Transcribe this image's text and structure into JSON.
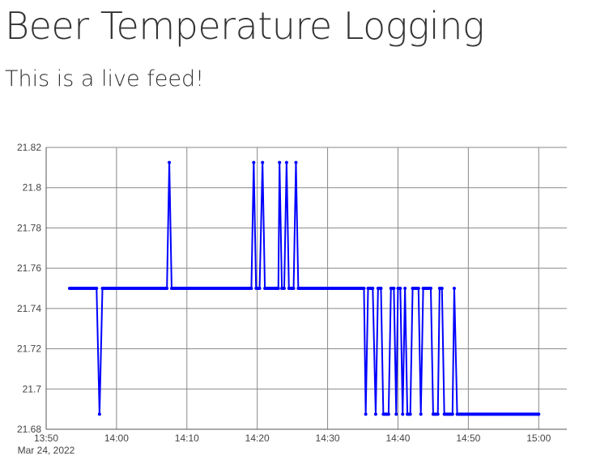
{
  "page": {
    "title": "Beer Temperature Logging",
    "subtitle": "This is a live feed!"
  },
  "chart_data": {
    "type": "line",
    "title": "",
    "xlabel": "",
    "ylabel": "",
    "x_date_label": "Mar 24, 2022",
    "x_tick_labels": [
      "13:50",
      "14:00",
      "14:10",
      "14:20",
      "14:30",
      "14:40",
      "14:50",
      "15:00"
    ],
    "y_tick_labels": [
      "21.68",
      "21.7",
      "21.72",
      "21.74",
      "21.76",
      "21.78",
      "21.8",
      "21.82"
    ],
    "xlim": [
      "13:50",
      "15:04"
    ],
    "ylim": [
      21.68,
      21.82
    ],
    "grid": true,
    "line_color": "#0000ff",
    "series": [
      {
        "name": "",
        "points": [
          [
            "13:53:20",
            21.75
          ],
          [
            "13:57:10",
            21.75
          ],
          [
            "13:57:35",
            21.6875
          ],
          [
            "13:58:00",
            21.75
          ],
          [
            "14:07:10",
            21.75
          ],
          [
            "14:07:30",
            21.8125
          ],
          [
            "14:07:50",
            21.75
          ],
          [
            "14:19:10",
            21.75
          ],
          [
            "14:19:30",
            21.8125
          ],
          [
            "14:19:50",
            21.75
          ],
          [
            "14:20:20",
            21.75
          ],
          [
            "14:20:45",
            21.8125
          ],
          [
            "14:21:05",
            21.75
          ],
          [
            "14:23:00",
            21.75
          ],
          [
            "14:23:10",
            21.8125
          ],
          [
            "14:23:30",
            21.75
          ],
          [
            "14:23:50",
            21.75
          ],
          [
            "14:24:10",
            21.8125
          ],
          [
            "14:24:30",
            21.75
          ],
          [
            "14:25:10",
            21.75
          ],
          [
            "14:25:30",
            21.8125
          ],
          [
            "14:25:50",
            21.75
          ],
          [
            "14:35:10",
            21.75
          ],
          [
            "14:35:25",
            21.6875
          ],
          [
            "14:35:45",
            21.75
          ],
          [
            "14:36:25",
            21.75
          ],
          [
            "14:36:50",
            21.6875
          ],
          [
            "14:37:10",
            21.75
          ],
          [
            "14:37:35",
            21.75
          ],
          [
            "14:37:55",
            21.6875
          ],
          [
            "14:38:40",
            21.6875
          ],
          [
            "14:39:00",
            21.75
          ],
          [
            "14:39:25",
            21.75
          ],
          [
            "14:39:45",
            21.6875
          ],
          [
            "14:40:00",
            21.75
          ],
          [
            "14:40:20",
            21.75
          ],
          [
            "14:40:40",
            21.6875
          ],
          [
            "14:41:00",
            21.75
          ],
          [
            "14:41:20",
            21.6875
          ],
          [
            "14:41:45",
            21.6875
          ],
          [
            "14:42:05",
            21.75
          ],
          [
            "14:42:55",
            21.75
          ],
          [
            "14:43:15",
            21.6875
          ],
          [
            "14:43:35",
            21.75
          ],
          [
            "14:44:40",
            21.75
          ],
          [
            "14:45:00",
            21.6875
          ],
          [
            "14:45:40",
            21.6875
          ],
          [
            "14:45:55",
            21.75
          ],
          [
            "14:46:15",
            21.75
          ],
          [
            "14:46:35",
            21.6875
          ],
          [
            "14:47:45",
            21.6875
          ],
          [
            "14:48:00",
            21.75
          ],
          [
            "14:48:25",
            21.6875
          ],
          [
            "15:00:00",
            21.6875
          ]
        ]
      }
    ]
  }
}
